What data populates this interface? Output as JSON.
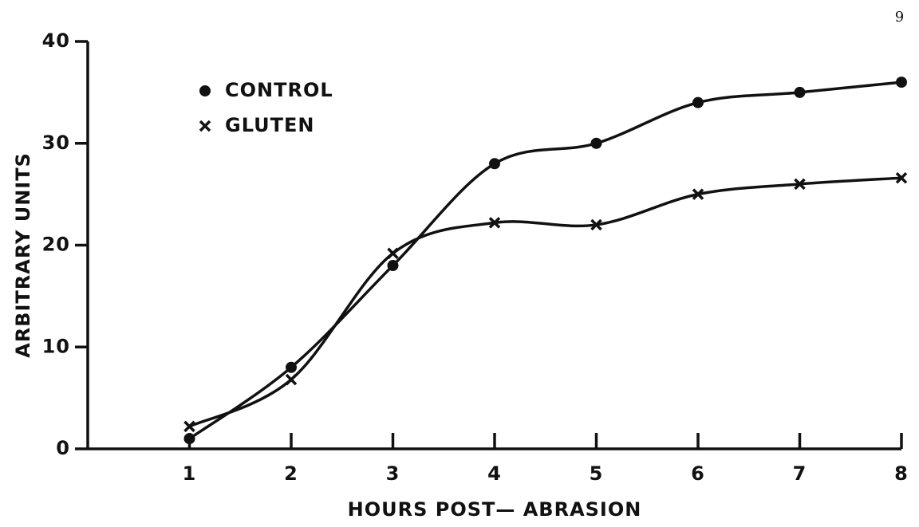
{
  "chart_data": {
    "type": "scatter",
    "page_number": "9",
    "x_label": "HOURS  POST— ABRASION",
    "y_label": "ARBITRARY UNITS",
    "x": [
      1,
      2,
      3,
      4,
      5,
      6,
      7,
      8
    ],
    "series": [
      {
        "name": "CONTROL",
        "color": "#111111",
        "marker": "circle",
        "values": [
          1,
          8,
          18,
          28,
          30,
          34,
          35,
          36
        ]
      },
      {
        "name": "GLUTEN",
        "color": "#111111",
        "marker": "x",
        "values": [
          2.2,
          6.8,
          19.2,
          22.2,
          22,
          25,
          26,
          26.6
        ]
      }
    ],
    "xlim": [
      0,
      8
    ],
    "xticks": [
      1,
      2,
      3,
      4,
      5,
      6,
      7,
      8
    ],
    "ylim": [
      0,
      40
    ],
    "yticks": [
      0,
      10,
      20,
      30,
      40
    ],
    "legend": "upper left",
    "grid": false
  }
}
